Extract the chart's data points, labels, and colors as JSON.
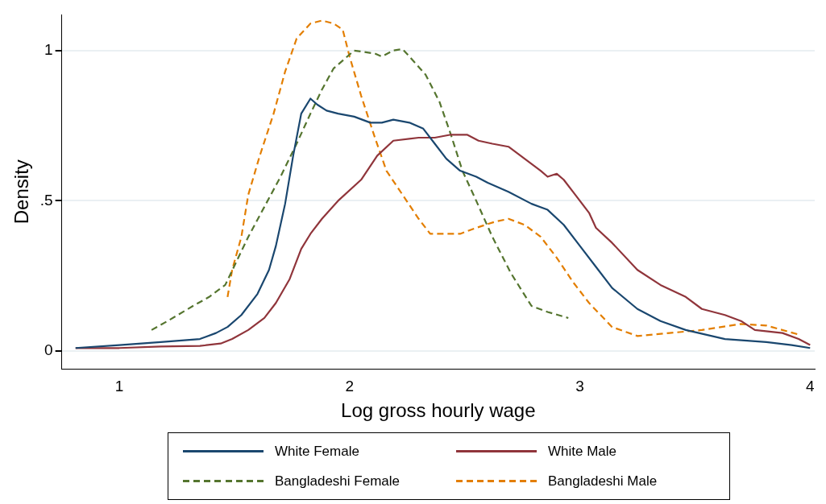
{
  "chart_data": {
    "type": "line",
    "xlabel": "Log gross hourly wage",
    "ylabel": "Density",
    "xlim": [
      0.75,
      4.02
    ],
    "xticks": [
      1,
      2,
      3,
      4
    ],
    "ylim": [
      -0.06,
      1.12
    ],
    "yticks": [
      0,
      {
        "value": 0.5,
        "label": ".5"
      },
      1
    ],
    "grid": "y",
    "legend": "bottom",
    "marker": "none",
    "series": [
      {
        "name": "White Female",
        "color": "#1a476f",
        "line_style": "solid",
        "x": [
          0.81,
          1.0,
          1.18,
          1.35,
          1.42,
          1.47,
          1.53,
          1.6,
          1.65,
          1.68,
          1.72,
          1.755,
          1.79,
          1.83,
          1.86,
          1.9,
          1.95,
          2.02,
          2.09,
          2.14,
          2.19,
          2.26,
          2.32,
          2.37,
          2.42,
          2.48,
          2.55,
          2.6,
          2.69,
          2.79,
          2.86,
          2.93,
          3.0,
          3.07,
          3.14,
          3.25,
          3.35,
          3.46,
          3.63,
          3.81,
          3.92,
          4.0
        ],
        "values": [
          0.01,
          0.02,
          0.03,
          0.04,
          0.06,
          0.08,
          0.12,
          0.19,
          0.27,
          0.35,
          0.49,
          0.65,
          0.79,
          0.84,
          0.82,
          0.8,
          0.79,
          0.78,
          0.76,
          0.76,
          0.77,
          0.76,
          0.74,
          0.69,
          0.64,
          0.6,
          0.58,
          0.56,
          0.53,
          0.49,
          0.47,
          0.42,
          0.35,
          0.28,
          0.21,
          0.14,
          0.1,
          0.07,
          0.04,
          0.03,
          0.02,
          0.01
        ]
      },
      {
        "name": "White Male",
        "color": "#90353b",
        "line_style": "solid",
        "x": [
          0.81,
          1.0,
          1.18,
          1.35,
          1.44,
          1.49,
          1.56,
          1.63,
          1.68,
          1.74,
          1.79,
          1.83,
          1.88,
          1.95,
          2.05,
          2.12,
          2.19,
          2.3,
          2.37,
          2.44,
          2.51,
          2.56,
          2.62,
          2.69,
          2.76,
          2.83,
          2.86,
          2.9,
          2.93,
          2.98,
          3.04,
          3.07,
          3.14,
          3.25,
          3.35,
          3.46,
          3.53,
          3.63,
          3.7,
          3.76,
          3.88,
          3.95,
          4.0
        ],
        "values": [
          0.01,
          0.01,
          0.015,
          0.017,
          0.025,
          0.04,
          0.07,
          0.11,
          0.16,
          0.24,
          0.34,
          0.39,
          0.44,
          0.5,
          0.57,
          0.65,
          0.7,
          0.71,
          0.71,
          0.72,
          0.72,
          0.7,
          0.69,
          0.68,
          0.64,
          0.6,
          0.58,
          0.59,
          0.57,
          0.52,
          0.46,
          0.41,
          0.36,
          0.27,
          0.22,
          0.18,
          0.14,
          0.12,
          0.1,
          0.07,
          0.06,
          0.04,
          0.02
        ]
      },
      {
        "name": "Bangladeshi Female",
        "color": "#55752f",
        "line_style": "dashed",
        "x": [
          1.14,
          1.21,
          1.32,
          1.39,
          1.46,
          1.51,
          1.56,
          1.63,
          1.7,
          1.77,
          1.83,
          1.88,
          1.93,
          2.02,
          2.11,
          2.14,
          2.19,
          2.23,
          2.26,
          2.33,
          2.39,
          2.44,
          2.49,
          2.55,
          2.62,
          2.7,
          2.79,
          2.86,
          2.95
        ],
        "values": [
          0.07,
          0.1,
          0.15,
          0.18,
          0.22,
          0.3,
          0.38,
          0.48,
          0.58,
          0.69,
          0.79,
          0.87,
          0.94,
          1.0,
          0.99,
          0.98,
          1.0,
          1.005,
          0.98,
          0.92,
          0.83,
          0.72,
          0.6,
          0.5,
          0.38,
          0.26,
          0.15,
          0.13,
          0.11
        ]
      },
      {
        "name": "Bangladeshi Male",
        "color": "#e37e00",
        "line_style": "dashed",
        "x": [
          1.47,
          1.49,
          1.53,
          1.56,
          1.61,
          1.67,
          1.72,
          1.77,
          1.83,
          1.88,
          1.93,
          1.97,
          2.0,
          2.05,
          2.11,
          2.16,
          2.23,
          2.3,
          2.35,
          2.4,
          2.48,
          2.55,
          2.63,
          2.69,
          2.76,
          2.83,
          2.9,
          2.97,
          3.04,
          3.14,
          3.25,
          3.39,
          3.53,
          3.7,
          3.81,
          3.95
        ],
        "values": [
          0.18,
          0.27,
          0.38,
          0.52,
          0.65,
          0.79,
          0.93,
          1.04,
          1.09,
          1.1,
          1.09,
          1.07,
          0.98,
          0.85,
          0.71,
          0.6,
          0.52,
          0.44,
          0.39,
          0.39,
          0.39,
          0.41,
          0.43,
          0.44,
          0.42,
          0.38,
          0.31,
          0.23,
          0.16,
          0.08,
          0.05,
          0.06,
          0.07,
          0.09,
          0.085,
          0.055
        ]
      }
    ]
  }
}
